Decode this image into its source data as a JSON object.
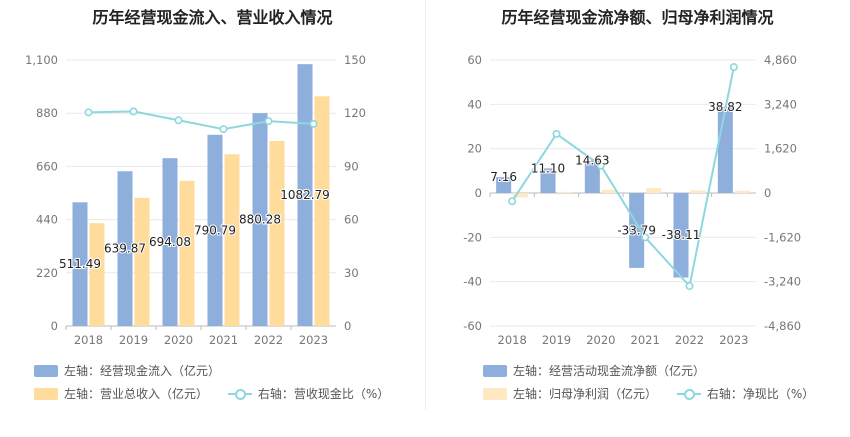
{
  "colors": {
    "blue": "#8eaedc",
    "yellow": "#ffdb9c",
    "line": "#8dd8df",
    "grid": "#e9e9e9",
    "axis": "#bbbbbb"
  },
  "left": {
    "title": "历年经营现金流入、营业收入情况",
    "legend": [
      {
        "label": "左轴：经营现金流入（亿元）",
        "icon": "bar-swatch",
        "color": "#8eaedc"
      },
      {
        "label": "左轴：营业总收入（亿元）",
        "icon": "bar-swatch",
        "color": "#ffdb9c"
      },
      {
        "label": "右轴：营收现金比（%）",
        "icon": "line-circle-marker",
        "color": "#8dd8df"
      }
    ]
  },
  "right": {
    "title": "历年经营现金流净额、归母净利润情况",
    "legend": [
      {
        "label": "左轴：经营活动现金流净额（亿元）",
        "icon": "bar-swatch",
        "color": "#8eaedc"
      },
      {
        "label": "左轴：归母净利润（亿元）",
        "icon": "bar-swatch",
        "color": "#ffdb9c"
      },
      {
        "label": "右轴：净现比（%）",
        "icon": "line-circle-marker",
        "color": "#8dd8df"
      }
    ]
  },
  "chart_data": [
    {
      "type": "bar",
      "title": "历年经营现金流入、营业收入情况",
      "categories": [
        "2018",
        "2019",
        "2020",
        "2021",
        "2022",
        "2023"
      ],
      "series": [
        {
          "name": "经营现金流入（亿元）",
          "axis": "left",
          "type": "bar",
          "values": [
            511.49,
            639.87,
            694.08,
            790.79,
            880.28,
            1082.79
          ],
          "labels": [
            "511.49",
            "639.87",
            "694.08",
            "790.79",
            "880.28",
            "1082.79"
          ]
        },
        {
          "name": "营业总收入（亿元）",
          "axis": "left",
          "type": "bar",
          "values": [
            425,
            530,
            600,
            710,
            765,
            950
          ]
        },
        {
          "name": "营收现金比（%）",
          "axis": "right",
          "type": "line",
          "values": [
            120.5,
            121,
            116,
            111,
            115.5,
            114
          ]
        }
      ],
      "yleft": {
        "ticks": [
          "0",
          "220",
          "440",
          "660",
          "880",
          "1,100"
        ],
        "range": [
          0,
          1100
        ]
      },
      "yright": {
        "ticks": [
          "0",
          "30",
          "60",
          "90",
          "120",
          "150"
        ],
        "range": [
          0,
          150
        ]
      },
      "grid": true,
      "legend_position": "bottom"
    },
    {
      "type": "bar",
      "title": "历年经营现金流净额、归母净利润情况",
      "categories": [
        "2018",
        "2019",
        "2020",
        "2021",
        "2022",
        "2023"
      ],
      "series": [
        {
          "name": "经营活动现金流净额（亿元）",
          "axis": "left",
          "type": "bar",
          "values": [
            7.16,
            11.1,
            14.63,
            -33.79,
            -38.11,
            38.82
          ],
          "labels": [
            "7.16",
            "11.10",
            "14.63",
            "-33.79",
            "-38.11",
            "38.82"
          ]
        },
        {
          "name": "归母净利润（亿元）",
          "axis": "left",
          "type": "bar",
          "values": [
            -2,
            0.5,
            1.5,
            2.2,
            1.2,
            1.0
          ]
        },
        {
          "name": "净现比（%）",
          "axis": "right",
          "type": "line",
          "values": [
            -300,
            2160,
            1000,
            -1620,
            -3400,
            4600
          ]
        }
      ],
      "yleft": {
        "ticks": [
          "-60",
          "-40",
          "-20",
          "0",
          "20",
          "40",
          "60"
        ],
        "range": [
          -60,
          60
        ]
      },
      "yright": {
        "ticks": [
          "-4,860",
          "-3,240",
          "-1,620",
          "0",
          "1,620",
          "3,240",
          "4,860"
        ],
        "range": [
          -4860,
          4860
        ]
      },
      "grid": true,
      "legend_position": "bottom"
    }
  ]
}
